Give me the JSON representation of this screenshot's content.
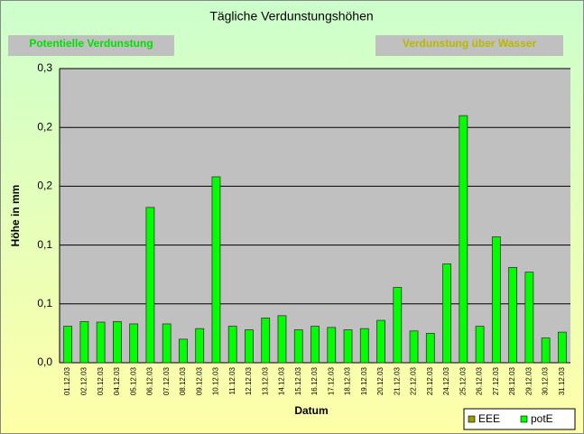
{
  "chart_data": {
    "type": "bar",
    "title": "Tägliche Verdunstungshöhen",
    "annotations": [
      {
        "text": "Potentielle Verdunstung",
        "color": "#00e000"
      },
      {
        "text": "Verdunstung über Wasser",
        "color": "#b8b800"
      }
    ],
    "ylabel": "Höhe in mm",
    "xlabel": "Datum",
    "categories": [
      "01.12.03",
      "02.12.03",
      "03.12.03",
      "04.12.03",
      "05.12.03",
      "06.12.03",
      "07.12.03",
      "08.12.03",
      "09.12.03",
      "10.12.03",
      "11.12.03",
      "12.12.03",
      "13.12.03",
      "14.12.03",
      "15.12.03",
      "16.12.03",
      "17.12.03",
      "18.12.03",
      "19.12.03",
      "20.12.03",
      "21.12.03",
      "22.12.03",
      "23.12.03",
      "24.12.03",
      "25.12.03",
      "26.12.03",
      "27.12.03",
      "28.12.03",
      "29.12.03",
      "30.12.03",
      "31.12.03"
    ],
    "series": [
      {
        "name": "EEE",
        "color": "#999900",
        "values": [
          null,
          null,
          null,
          null,
          null,
          null,
          null,
          null,
          null,
          null,
          null,
          null,
          null,
          null,
          null,
          null,
          null,
          null,
          null,
          null,
          null,
          null,
          null,
          null,
          null,
          null,
          null,
          null,
          null,
          null,
          null
        ]
      },
      {
        "name": "potE",
        "color": "#00ff00",
        "values": [
          0.031,
          0.035,
          0.0345,
          0.035,
          0.033,
          0.132,
          0.033,
          0.02,
          0.029,
          0.158,
          0.031,
          0.028,
          0.038,
          0.04,
          0.028,
          0.031,
          0.03,
          0.028,
          0.029,
          0.036,
          0.064,
          0.027,
          0.025,
          0.084,
          0.21,
          0.031,
          0.107,
          0.081,
          0.077,
          0.021,
          0.026
        ]
      }
    ],
    "ylim": [
      0,
      0.25
    ],
    "yticks": [
      {
        "value": 0,
        "label": "0,0"
      },
      {
        "value": 0.05,
        "label": "0,1"
      },
      {
        "value": 0.1,
        "label": "0,1"
      },
      {
        "value": 0.15,
        "label": "0,2"
      },
      {
        "value": 0.2,
        "label": "0,2"
      },
      {
        "value": 0.25,
        "label": "0,3"
      }
    ],
    "grid": true,
    "legend": "bottom-right"
  }
}
